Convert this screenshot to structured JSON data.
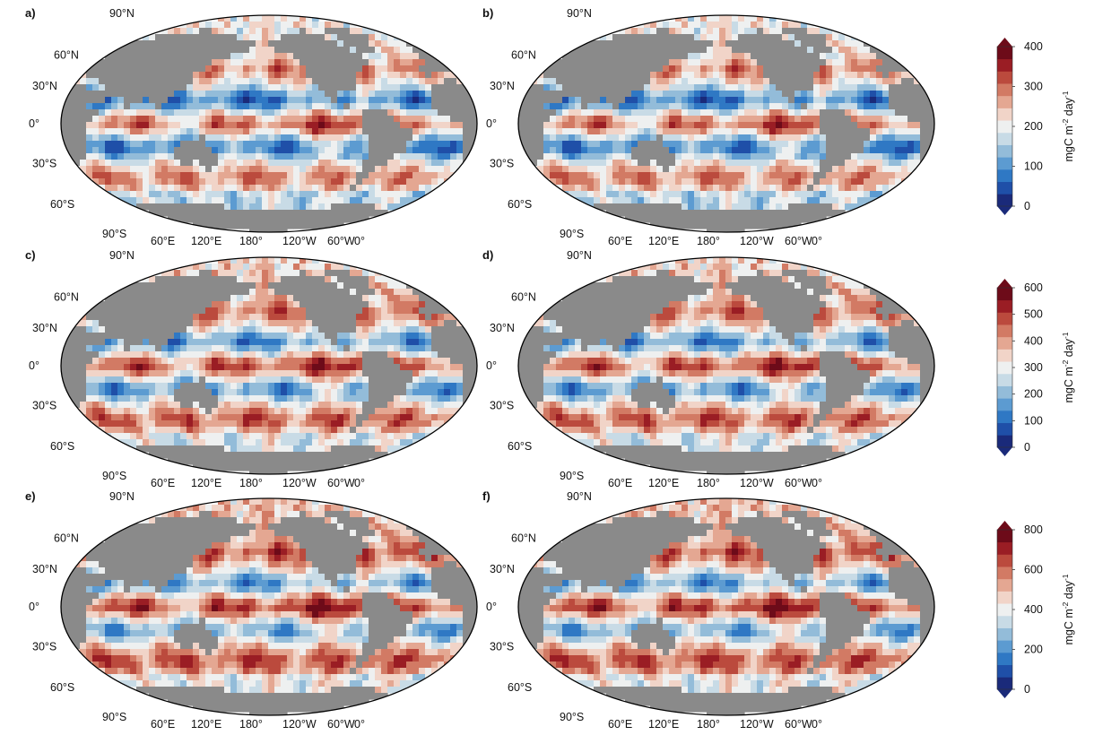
{
  "panels": [
    {
      "id": "a",
      "label": "a)",
      "scale": 0
    },
    {
      "id": "b",
      "label": "b)",
      "scale": 0
    },
    {
      "id": "c",
      "label": "c)",
      "scale": 1
    },
    {
      "id": "d",
      "label": "d)",
      "scale": 1
    },
    {
      "id": "e",
      "label": "e)",
      "scale": 2
    },
    {
      "id": "f",
      "label": "f)",
      "scale": 2
    }
  ],
  "latitude_labels": [
    "90°N",
    "60°N",
    "30°N",
    "0°",
    "30°S",
    "60°S",
    "90°S"
  ],
  "longitude_labels": [
    "60°E",
    "120°E",
    "180°",
    "120°W",
    "60°W",
    "0°"
  ],
  "colorbars": [
    {
      "ticks": [
        "0",
        "100",
        "200",
        "300",
        "400"
      ],
      "unit": "mgC m",
      "exp1": "-2",
      "unit2": " day",
      "exp2": "-1"
    },
    {
      "ticks": [
        "0",
        "100",
        "200",
        "300",
        "400",
        "500",
        "600"
      ],
      "unit": "mgC m",
      "exp1": "-2",
      "unit2": " day",
      "exp2": "-1"
    },
    {
      "ticks": [
        "0",
        "200",
        "400",
        "600",
        "800"
      ],
      "unit": "mgC m",
      "exp1": "-2",
      "unit2": " day",
      "exp2": "-1"
    }
  ],
  "colors": {
    "land": "#8a8a8a",
    "ramp": [
      "#1a2a7a",
      "#1f4fa8",
      "#2f78c4",
      "#5c9bd1",
      "#93bcd9",
      "#c8dbe6",
      "#eef0f0",
      "#f1d4c8",
      "#e4a792",
      "#d27a64",
      "#bb4a3d",
      "#9a1d24",
      "#6d0b19"
    ]
  }
}
